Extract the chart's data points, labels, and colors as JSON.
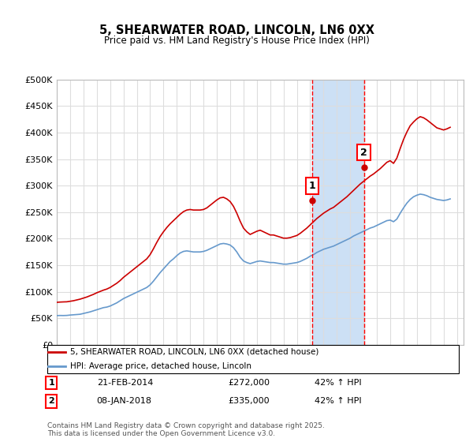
{
  "title": "5, SHEARWATER ROAD, LINCOLN, LN6 0XX",
  "subtitle": "Price paid vs. HM Land Registry's House Price Index (HPI)",
  "ylabel_ticks": [
    "£0",
    "£50K",
    "£100K",
    "£150K",
    "£200K",
    "£250K",
    "£300K",
    "£350K",
    "£400K",
    "£450K",
    "£500K"
  ],
  "ytick_values": [
    0,
    50000,
    100000,
    150000,
    200000,
    250000,
    300000,
    350000,
    400000,
    450000,
    500000
  ],
  "ylim": [
    0,
    500000
  ],
  "xlim_start": 1995.0,
  "xlim_end": 2025.5,
  "marker1_x": 2014.13,
  "marker2_x": 2018.03,
  "marker1_y": 272000,
  "marker2_y": 335000,
  "marker1_label": "1",
  "marker2_label": "2",
  "shade_color": "#cce0f5",
  "vline_color": "#ff0000",
  "red_line_color": "#cc0000",
  "blue_line_color": "#6699cc",
  "legend_red_label": "5, SHEARWATER ROAD, LINCOLN, LN6 0XX (detached house)",
  "legend_blue_label": "HPI: Average price, detached house, Lincoln",
  "annotation1": "21-FEB-2014    £272,000    42% ↑ HPI",
  "annotation2": "08-JAN-2018    £335,000    42% ↑ HPI",
  "footer": "Contains HM Land Registry data © Crown copyright and database right 2025.\nThis data is licensed under the Open Government Licence v3.0.",
  "background_color": "#ffffff",
  "plot_bg_color": "#ffffff",
  "grid_color": "#dddddd",
  "hpi_data": {
    "years": [
      1995.0,
      1995.25,
      1995.5,
      1995.75,
      1996.0,
      1996.25,
      1996.5,
      1996.75,
      1997.0,
      1997.25,
      1997.5,
      1997.75,
      1998.0,
      1998.25,
      1998.5,
      1998.75,
      1999.0,
      1999.25,
      1999.5,
      1999.75,
      2000.0,
      2000.25,
      2000.5,
      2000.75,
      2001.0,
      2001.25,
      2001.5,
      2001.75,
      2002.0,
      2002.25,
      2002.5,
      2002.75,
      2003.0,
      2003.25,
      2003.5,
      2003.75,
      2004.0,
      2004.25,
      2004.5,
      2004.75,
      2005.0,
      2005.25,
      2005.5,
      2005.75,
      2006.0,
      2006.25,
      2006.5,
      2006.75,
      2007.0,
      2007.25,
      2007.5,
      2007.75,
      2008.0,
      2008.25,
      2008.5,
      2008.75,
      2009.0,
      2009.25,
      2009.5,
      2009.75,
      2010.0,
      2010.25,
      2010.5,
      2010.75,
      2011.0,
      2011.25,
      2011.5,
      2011.75,
      2012.0,
      2012.25,
      2012.5,
      2012.75,
      2013.0,
      2013.25,
      2013.5,
      2013.75,
      2014.0,
      2014.25,
      2014.5,
      2014.75,
      2015.0,
      2015.25,
      2015.5,
      2015.75,
      2016.0,
      2016.25,
      2016.5,
      2016.75,
      2017.0,
      2017.25,
      2017.5,
      2017.75,
      2018.0,
      2018.25,
      2018.5,
      2018.75,
      2019.0,
      2019.25,
      2019.5,
      2019.75,
      2020.0,
      2020.25,
      2020.5,
      2020.75,
      2021.0,
      2021.25,
      2021.5,
      2021.75,
      2022.0,
      2022.25,
      2022.5,
      2022.75,
      2023.0,
      2023.25,
      2023.5,
      2023.75,
      2024.0,
      2024.25,
      2024.5
    ],
    "values": [
      55000,
      55200,
      55100,
      55300,
      56000,
      56500,
      57000,
      57500,
      59000,
      60500,
      62000,
      64000,
      66000,
      68000,
      70000,
      71000,
      73000,
      76000,
      79000,
      83000,
      87000,
      90000,
      93000,
      96000,
      99000,
      102000,
      105000,
      108000,
      113000,
      120000,
      128000,
      136000,
      143000,
      150000,
      157000,
      162000,
      168000,
      173000,
      176000,
      177000,
      176000,
      175000,
      175000,
      175000,
      176000,
      178000,
      181000,
      184000,
      187000,
      190000,
      191000,
      190000,
      188000,
      183000,
      175000,
      165000,
      158000,
      155000,
      153000,
      155000,
      157000,
      158000,
      157000,
      156000,
      155000,
      155000,
      154000,
      153000,
      152000,
      152000,
      153000,
      154000,
      155000,
      157000,
      160000,
      163000,
      167000,
      170000,
      174000,
      177000,
      180000,
      182000,
      184000,
      186000,
      189000,
      192000,
      195000,
      198000,
      201000,
      205000,
      208000,
      211000,
      214000,
      217000,
      220000,
      222000,
      225000,
      228000,
      231000,
      234000,
      235000,
      232000,
      237000,
      248000,
      258000,
      267000,
      274000,
      279000,
      282000,
      284000,
      283000,
      281000,
      278000,
      276000,
      274000,
      273000,
      272000,
      273000,
      275000
    ]
  },
  "price_data": {
    "years": [
      1995.0,
      1995.25,
      1995.5,
      1995.75,
      1996.0,
      1996.25,
      1996.5,
      1996.75,
      1997.0,
      1997.25,
      1997.5,
      1997.75,
      1998.0,
      1998.25,
      1998.5,
      1998.75,
      1999.0,
      1999.25,
      1999.5,
      1999.75,
      2000.0,
      2000.25,
      2000.5,
      2000.75,
      2001.0,
      2001.25,
      2001.5,
      2001.75,
      2002.0,
      2002.25,
      2002.5,
      2002.75,
      2003.0,
      2003.25,
      2003.5,
      2003.75,
      2004.0,
      2004.25,
      2004.5,
      2004.75,
      2005.0,
      2005.25,
      2005.5,
      2005.75,
      2006.0,
      2006.25,
      2006.5,
      2006.75,
      2007.0,
      2007.25,
      2007.5,
      2007.75,
      2008.0,
      2008.25,
      2008.5,
      2008.75,
      2009.0,
      2009.25,
      2009.5,
      2009.75,
      2010.0,
      2010.25,
      2010.5,
      2010.75,
      2011.0,
      2011.25,
      2011.5,
      2011.75,
      2012.0,
      2012.25,
      2012.5,
      2012.75,
      2013.0,
      2013.25,
      2013.5,
      2013.75,
      2014.0,
      2014.25,
      2014.5,
      2014.75,
      2015.0,
      2015.25,
      2015.5,
      2015.75,
      2016.0,
      2016.25,
      2016.5,
      2016.75,
      2017.0,
      2017.25,
      2017.5,
      2017.75,
      2018.0,
      2018.25,
      2018.5,
      2018.75,
      2019.0,
      2019.25,
      2019.5,
      2019.75,
      2020.0,
      2020.25,
      2020.5,
      2020.75,
      2021.0,
      2021.25,
      2021.5,
      2021.75,
      2022.0,
      2022.25,
      2022.5,
      2022.75,
      2023.0,
      2023.25,
      2023.5,
      2023.75,
      2024.0,
      2024.25,
      2024.5
    ],
    "values": [
      80000,
      80500,
      80800,
      81000,
      82000,
      83000,
      84500,
      86000,
      88000,
      90000,
      92500,
      95000,
      98000,
      100500,
      103000,
      105000,
      108000,
      112000,
      116000,
      121000,
      127000,
      132000,
      137000,
      142000,
      147000,
      152000,
      157000,
      162000,
      170000,
      181000,
      193000,
      204000,
      213000,
      221000,
      228000,
      234000,
      240000,
      246000,
      251000,
      254000,
      255000,
      254000,
      254000,
      254000,
      255000,
      258000,
      263000,
      268000,
      273000,
      277000,
      278000,
      275000,
      270000,
      261000,
      248000,
      233000,
      220000,
      213000,
      208000,
      211000,
      214000,
      216000,
      213000,
      210000,
      207000,
      207000,
      205000,
      203000,
      201000,
      201000,
      202000,
      204000,
      206000,
      210000,
      215000,
      220000,
      226000,
      232000,
      238000,
      243000,
      248000,
      252000,
      256000,
      259000,
      264000,
      269000,
      274000,
      279000,
      285000,
      291000,
      297000,
      303000,
      308000,
      313000,
      318000,
      322000,
      327000,
      332000,
      338000,
      344000,
      347000,
      342000,
      352000,
      370000,
      387000,
      401000,
      413000,
      420000,
      426000,
      430000,
      428000,
      424000,
      419000,
      414000,
      409000,
      407000,
      405000,
      407000,
      410000
    ]
  }
}
